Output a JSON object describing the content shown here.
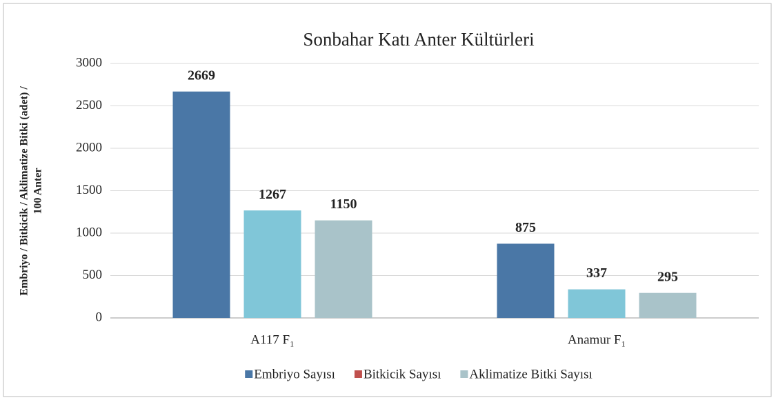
{
  "chart_data": {
    "type": "bar",
    "title": "Sonbahar Katı Anter Kültürleri",
    "y_label": [
      "Embriyo / Bitkicik / Aklimatize Bitki (adet) /",
      "100 Anter"
    ],
    "categories": [
      "A117  F₁",
      "Anamur F₁"
    ],
    "series": [
      {
        "name": "Embriyo Sayısı",
        "color": "#4a77a6",
        "legend_color": "#4a77a6",
        "values": [
          2669,
          875
        ]
      },
      {
        "name": "Bitkicik Sayısı",
        "color": "#80c6d8",
        "legend_color": "#c0504d",
        "values": [
          1267,
          337
        ]
      },
      {
        "name": "Aklimatize Bitki Sayısı",
        "color": "#a9c3c9",
        "legend_color": "#a9c3c9",
        "values": [
          1150,
          295
        ]
      }
    ],
    "ylim": [
      0,
      3000
    ],
    "yticks": [
      0,
      500,
      1000,
      1500,
      2000,
      2500,
      3000
    ],
    "grid": true,
    "legend": "bottom"
  }
}
